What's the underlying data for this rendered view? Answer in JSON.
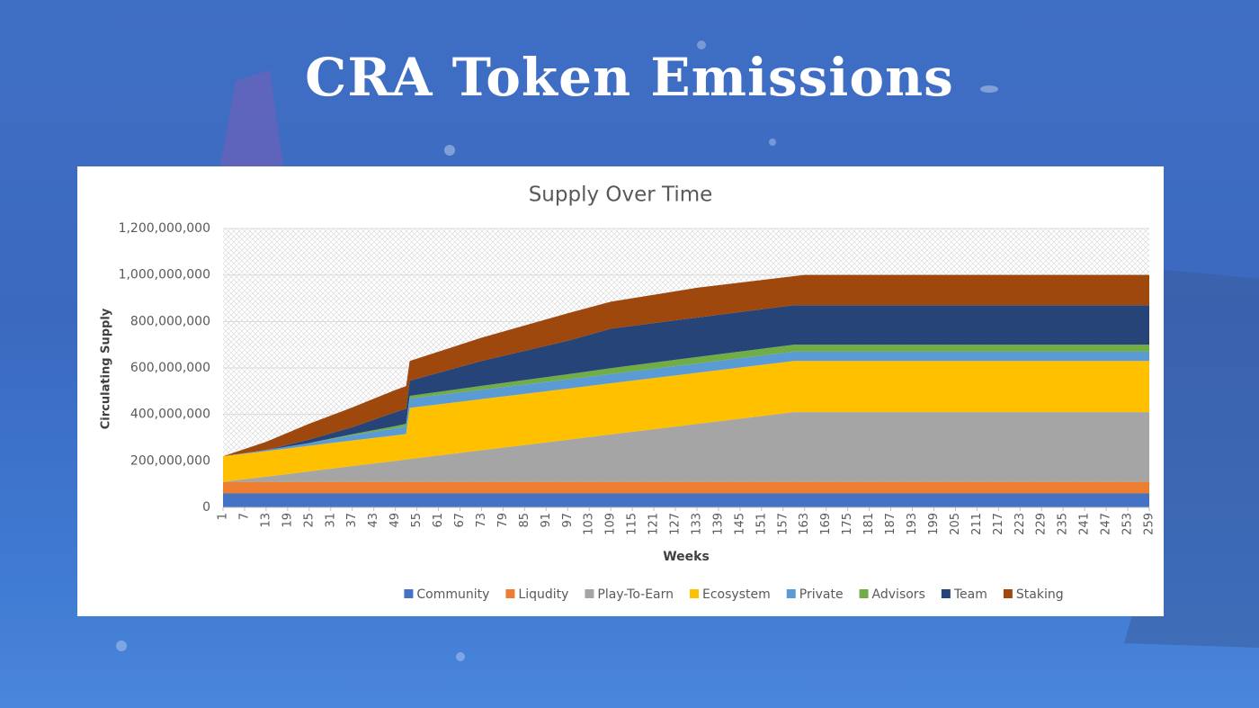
{
  "slide_title": "CRA Token Emissions",
  "chart_data": {
    "type": "area",
    "stacked": true,
    "title": "Supply Over Time",
    "x_label": "Weeks",
    "y_label": "Circulating Supply",
    "x": [
      1,
      13,
      25,
      37,
      49,
      52,
      53,
      73,
      97,
      109,
      133,
      160,
      163,
      259
    ],
    "xlim": [
      1,
      259
    ],
    "xticks": [
      1,
      7,
      13,
      19,
      25,
      31,
      37,
      43,
      49,
      55,
      61,
      67,
      73,
      79,
      85,
      91,
      97,
      103,
      109,
      115,
      121,
      127,
      133,
      139,
      145,
      151,
      157,
      163,
      169,
      175,
      181,
      187,
      193,
      199,
      205,
      211,
      217,
      223,
      229,
      235,
      241,
      247,
      253,
      259
    ],
    "ylim": [
      0,
      1200000000
    ],
    "yticks": [
      0,
      {
        "value": 200000000,
        "label": "200,000,000"
      },
      {
        "value": 400000000,
        "label": "400,000,000"
      },
      {
        "value": 600000000,
        "label": "600,000,000"
      },
      {
        "value": 800000000,
        "label": "800,000,000"
      },
      {
        "value": 1000000000,
        "label": "1,000,000,000"
      },
      {
        "value": 1200000000,
        "label": "1,200,000,000"
      }
    ],
    "grid": true,
    "legend": "bottom",
    "series": [
      {
        "name": "Community",
        "color": "#4472c4",
        "values": [
          60000000,
          60000000,
          60000000,
          60000000,
          60000000,
          60000000,
          60000000,
          60000000,
          60000000,
          60000000,
          60000000,
          60000000,
          60000000,
          60000000
        ]
      },
      {
        "name": "Liqudity",
        "color": "#ed7d31",
        "values": [
          50000000,
          50000000,
          50000000,
          50000000,
          50000000,
          50000000,
          50000000,
          50000000,
          50000000,
          50000000,
          50000000,
          50000000,
          50000000,
          50000000
        ]
      },
      {
        "name": "Play-To-Earn",
        "color": "#a5a5a5",
        "values": [
          0,
          22000000,
          45000000,
          68000000,
          90000000,
          96000000,
          98000000,
          136000000,
          181000000,
          204000000,
          249000000,
          300000000,
          300000000,
          300000000
        ]
      },
      {
        "name": "Ecosystem",
        "color": "#ffc000",
        "values": [
          110000000,
          110000000,
          110000000,
          110000000,
          110000000,
          110000000,
          220000000,
          220000000,
          220000000,
          220000000,
          220000000,
          220000000,
          220000000,
          220000000
        ]
      },
      {
        "name": "Private",
        "color": "#5b9bd5",
        "values": [
          0,
          5000000,
          12000000,
          22000000,
          30000000,
          32000000,
          40000000,
          40000000,
          40000000,
          40000000,
          40000000,
          40000000,
          40000000,
          40000000
        ]
      },
      {
        "name": "Advisors",
        "color": "#70ad47",
        "values": [
          0,
          0,
          0,
          5000000,
          10000000,
          12000000,
          12000000,
          17000000,
          22000000,
          25000000,
          28000000,
          30000000,
          30000000,
          30000000
        ]
      },
      {
        "name": "Team",
        "color": "#264478",
        "values": [
          0,
          0,
          15000000,
          30000000,
          60000000,
          65000000,
          65000000,
          107000000,
          144000000,
          170000000,
          170000000,
          170000000,
          170000000,
          170000000
        ]
      },
      {
        "name": "Staking",
        "color": "#9e480e",
        "values": [
          0,
          35000000,
          68000000,
          85000000,
          95000000,
          97000000,
          85000000,
          100000000,
          118000000,
          116000000,
          128000000,
          125000000,
          130000000,
          130000000
        ]
      }
    ]
  }
}
